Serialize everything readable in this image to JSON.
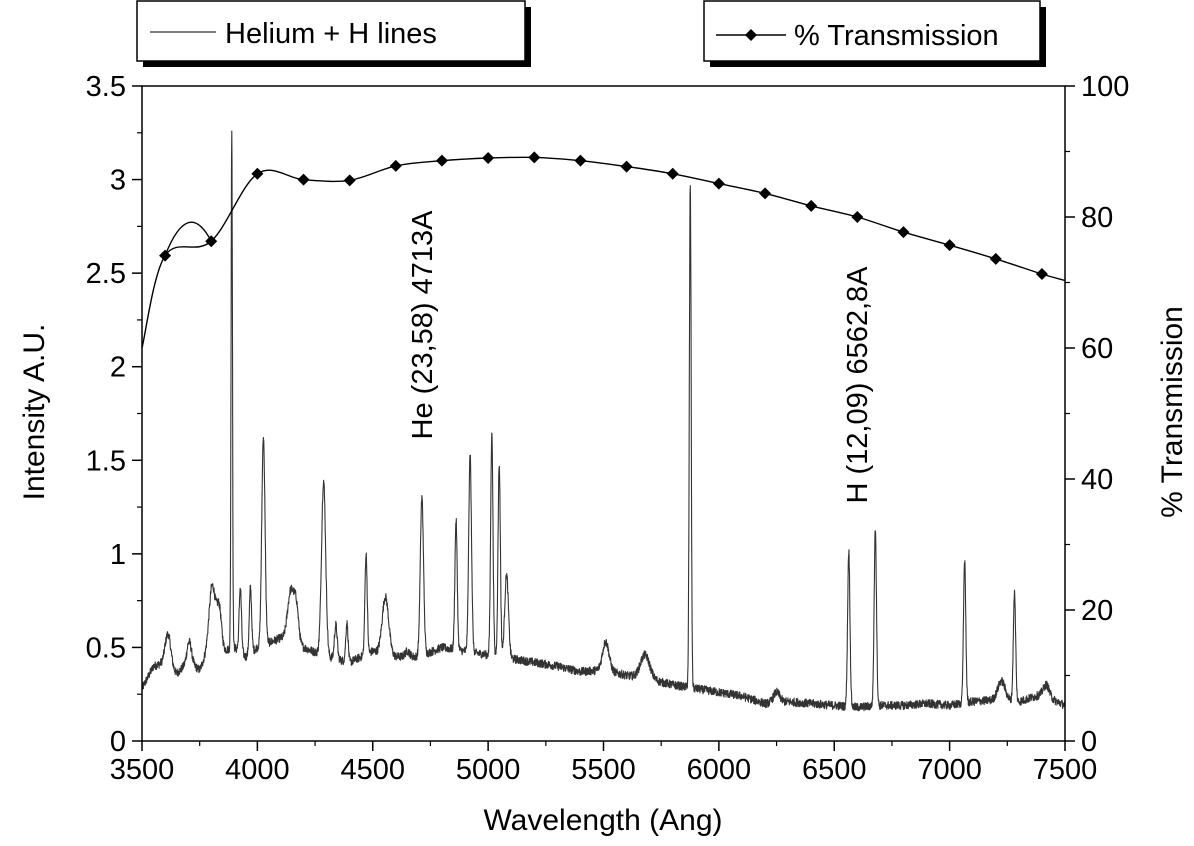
{
  "chart_data": {
    "type": "line",
    "title": "",
    "xlabel": "Wavelength (Ang)",
    "ylabel": "Intensity A.U.",
    "y2label": "% Transmission",
    "xlim": [
      3500,
      7500
    ],
    "ylim": [
      0,
      3.5
    ],
    "y2lim": [
      0,
      100
    ],
    "x_ticks": [
      3500,
      4000,
      4500,
      5000,
      5500,
      6000,
      6500,
      7000,
      7500
    ],
    "y_ticks": [
      0,
      0.5,
      1,
      1.5,
      2,
      2.5,
      3,
      3.5
    ],
    "y2_ticks": [
      0,
      20,
      40,
      60,
      80,
      100
    ],
    "grid": false,
    "legend": [
      {
        "label": "Helium + H lines",
        "placement": "top-left",
        "marker": "none"
      },
      {
        "label": "% Transmission",
        "placement": "top-right",
        "marker": "diamond"
      }
    ],
    "annotations": [
      {
        "text": "He (23,58) 4713A",
        "x": 4713,
        "y": 2.75,
        "rotation": -90
      },
      {
        "text": "H (12,09) 6562,8A",
        "x": 6562.8,
        "y": 2.75,
        "rotation": -90
      }
    ],
    "series": [
      {
        "name": "% Transmission",
        "axis": "right",
        "marker": "diamond",
        "x": [
          3600,
          3800,
          4000,
          4200,
          4400,
          4600,
          4800,
          5000,
          5200,
          5400,
          5600,
          5800,
          6000,
          6200,
          6400,
          6600,
          6800,
          7000,
          7200,
          7400
        ],
        "y": [
          74.1,
          76.3,
          86.6,
          85.7,
          85.6,
          87.8,
          88.6,
          89.0,
          89.1,
          88.6,
          87.7,
          86.6,
          85.1,
          83.6,
          81.7,
          80.0,
          77.7,
          75.7,
          73.6,
          71.3
        ]
      },
      {
        "name": "Helium + H lines",
        "axis": "left",
        "marker": "none",
        "baseline": {
          "x": [
            3500,
            3550,
            3600,
            3650,
            3700,
            3750,
            3800,
            3850,
            3900,
            3950,
            4000,
            4100,
            4200,
            4300,
            4400,
            4500,
            4600,
            4700,
            4800,
            4900,
            5000,
            5100,
            5200,
            5300,
            5400,
            5500,
            5600,
            5700,
            5800,
            5900,
            6000,
            6100,
            6200,
            6300,
            6400,
            6500,
            6600,
            6700,
            6800,
            6900,
            7000,
            7100,
            7200,
            7300,
            7400,
            7500
          ],
          "y": [
            0.28,
            0.4,
            0.42,
            0.36,
            0.42,
            0.38,
            0.52,
            0.48,
            0.5,
            0.45,
            0.5,
            0.55,
            0.5,
            0.45,
            0.42,
            0.48,
            0.45,
            0.45,
            0.5,
            0.48,
            0.46,
            0.44,
            0.42,
            0.4,
            0.37,
            0.38,
            0.35,
            0.33,
            0.3,
            0.28,
            0.26,
            0.24,
            0.2,
            0.21,
            0.2,
            0.19,
            0.18,
            0.19,
            0.19,
            0.2,
            0.19,
            0.21,
            0.22,
            0.21,
            0.25,
            0.19
          ]
        },
        "peaks": [
          {
            "x": 3613,
            "y": 0.57,
            "width": 12
          },
          {
            "x": 3705,
            "y": 0.53,
            "width": 10
          },
          {
            "x": 3805,
            "y": 0.83,
            "width": 14
          },
          {
            "x": 3835,
            "y": 0.7,
            "width": 10
          },
          {
            "x": 3889,
            "y": 3.27,
            "width": 3
          },
          {
            "x": 3926,
            "y": 0.82,
            "width": 5
          },
          {
            "x": 3970,
            "y": 0.82,
            "width": 5
          },
          {
            "x": 4026,
            "y": 1.63,
            "width": 7
          },
          {
            "x": 4145,
            "y": 0.8,
            "width": 14
          },
          {
            "x": 4169,
            "y": 0.7,
            "width": 10
          },
          {
            "x": 4287,
            "y": 1.39,
            "width": 9
          },
          {
            "x": 4340,
            "y": 0.62,
            "width": 6
          },
          {
            "x": 4388,
            "y": 0.63,
            "width": 5
          },
          {
            "x": 4471,
            "y": 1.0,
            "width": 5
          },
          {
            "x": 4555,
            "y": 0.77,
            "width": 14
          },
          {
            "x": 4650,
            "y": 0.48,
            "width": 10
          },
          {
            "x": 4713,
            "y": 1.3,
            "width": 7
          },
          {
            "x": 4861,
            "y": 1.18,
            "width": 5
          },
          {
            "x": 4922,
            "y": 1.53,
            "width": 6
          },
          {
            "x": 5016,
            "y": 1.65,
            "width": 5
          },
          {
            "x": 5048,
            "y": 1.48,
            "width": 5
          },
          {
            "x": 5080,
            "y": 0.89,
            "width": 8
          },
          {
            "x": 5510,
            "y": 0.53,
            "width": 14
          },
          {
            "x": 5680,
            "y": 0.46,
            "width": 20
          },
          {
            "x": 5876,
            "y": 2.98,
            "width": 4
          },
          {
            "x": 6250,
            "y": 0.26,
            "width": 14
          },
          {
            "x": 6563,
            "y": 1.02,
            "width": 5
          },
          {
            "x": 6678,
            "y": 1.14,
            "width": 5
          },
          {
            "x": 7065,
            "y": 0.96,
            "width": 5
          },
          {
            "x": 7225,
            "y": 0.32,
            "width": 16
          },
          {
            "x": 7281,
            "y": 0.79,
            "width": 5
          },
          {
            "x": 7420,
            "y": 0.3,
            "width": 12
          }
        ]
      }
    ]
  }
}
